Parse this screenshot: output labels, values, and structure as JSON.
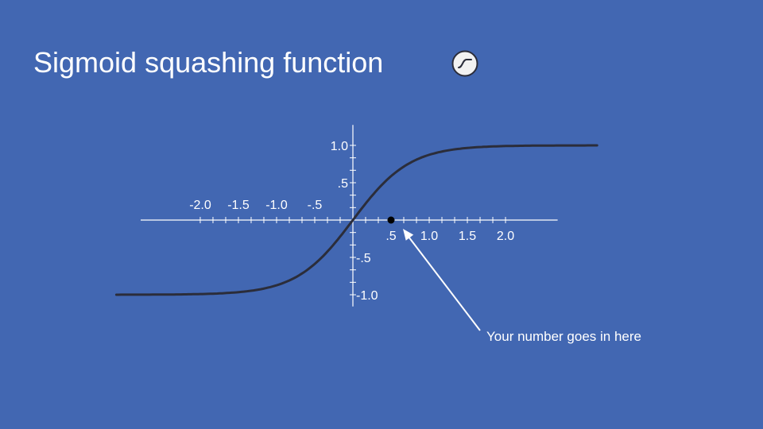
{
  "slide": {
    "title": "Sigmoid squashing function",
    "badge_icon": "sigmoid-curve-icon",
    "annotation": "Your number goes in here"
  },
  "colors": {
    "background": "#4267b2",
    "curve": "#2b2d3a",
    "axis": "#ffffff",
    "marker": "#000000"
  },
  "chart_data": {
    "type": "line",
    "title": "",
    "xlabel": "",
    "ylabel": "",
    "x_tick_labels": [
      {
        "value": -2.0,
        "label": "-2.0"
      },
      {
        "value": -1.5,
        "label": "-1.5"
      },
      {
        "value": -1.0,
        "label": "-1.0"
      },
      {
        "value": -0.5,
        "label": "-.5"
      },
      {
        "value": 0.5,
        "label": ".5"
      },
      {
        "value": 1.0,
        "label": "1.0"
      },
      {
        "value": 1.5,
        "label": "1.5"
      },
      {
        "value": 2.0,
        "label": "2.0"
      }
    ],
    "y_tick_labels": [
      {
        "value": 1.0,
        "label": "1.0"
      },
      {
        "value": 0.5,
        "label": ".5"
      },
      {
        "value": -0.5,
        "label": "-.5"
      },
      {
        "value": -1.0,
        "label": "-1.0"
      }
    ],
    "x_minor_step": 0.1667,
    "y_minor_step": 0.1667,
    "x_axis_range": [
      -2.5,
      2.6
    ],
    "y_axis_range": [
      -1.2,
      1.2
    ],
    "curve_xlim": [
      -3.1,
      3.2
    ],
    "steepness": 3.1,
    "series": [
      {
        "function": "tanh",
        "x_min": -3.1,
        "x_max": 3.2,
        "y_min": -1.0,
        "y_max": 1.0
      }
    ],
    "marker": {
      "x": 0.5,
      "y": 0
    }
  }
}
